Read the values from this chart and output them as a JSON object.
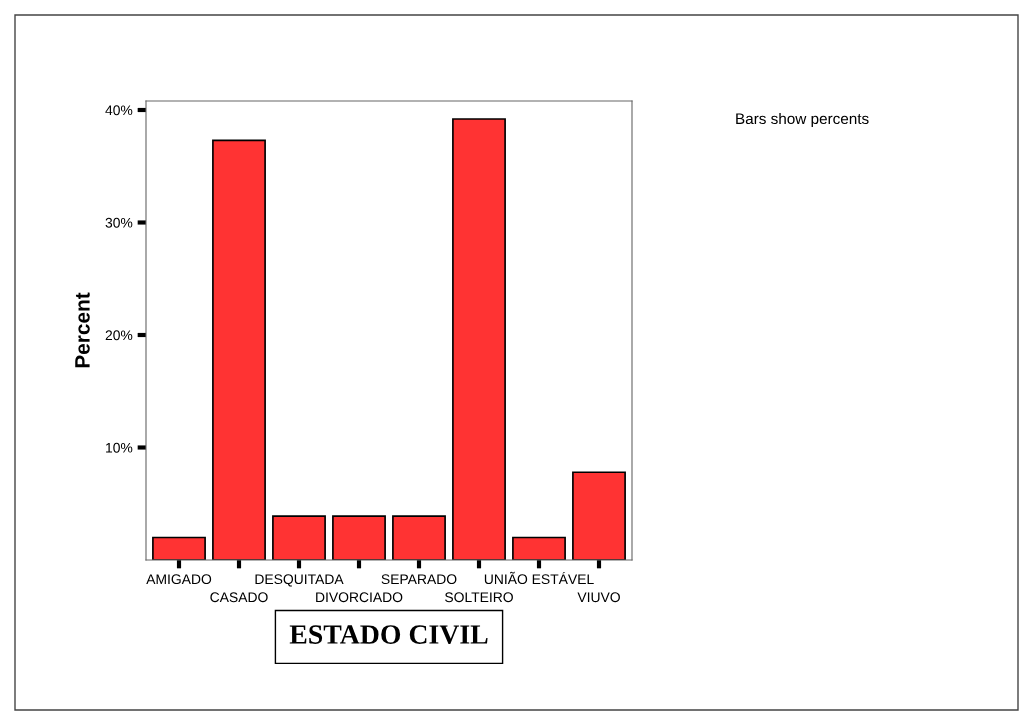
{
  "chart_data": {
    "type": "bar",
    "xlabel": "ESTADO CIVIL",
    "ylabel": "Percent",
    "categories": [
      "AMIGADO",
      "CASADO",
      "DESQUITADA",
      "DIVORCIADO",
      "SEPARADO",
      "SOLTEIRO",
      "UNIÃO ESTÁVEL",
      "VIUVO"
    ],
    "values": [
      2.0,
      37.3,
      3.9,
      3.9,
      3.9,
      39.2,
      2.0,
      7.8
    ],
    "color": "#ff3333",
    "ylim": [
      0,
      40.8
    ],
    "yticks": [
      {
        "value": 10,
        "label": "10%"
      },
      {
        "value": 20,
        "label": "20%"
      },
      {
        "value": 30,
        "label": "30%"
      },
      {
        "value": 40,
        "label": "40%"
      }
    ],
    "grid": false,
    "legend": false,
    "annotations": [
      "Bars show percents"
    ]
  }
}
